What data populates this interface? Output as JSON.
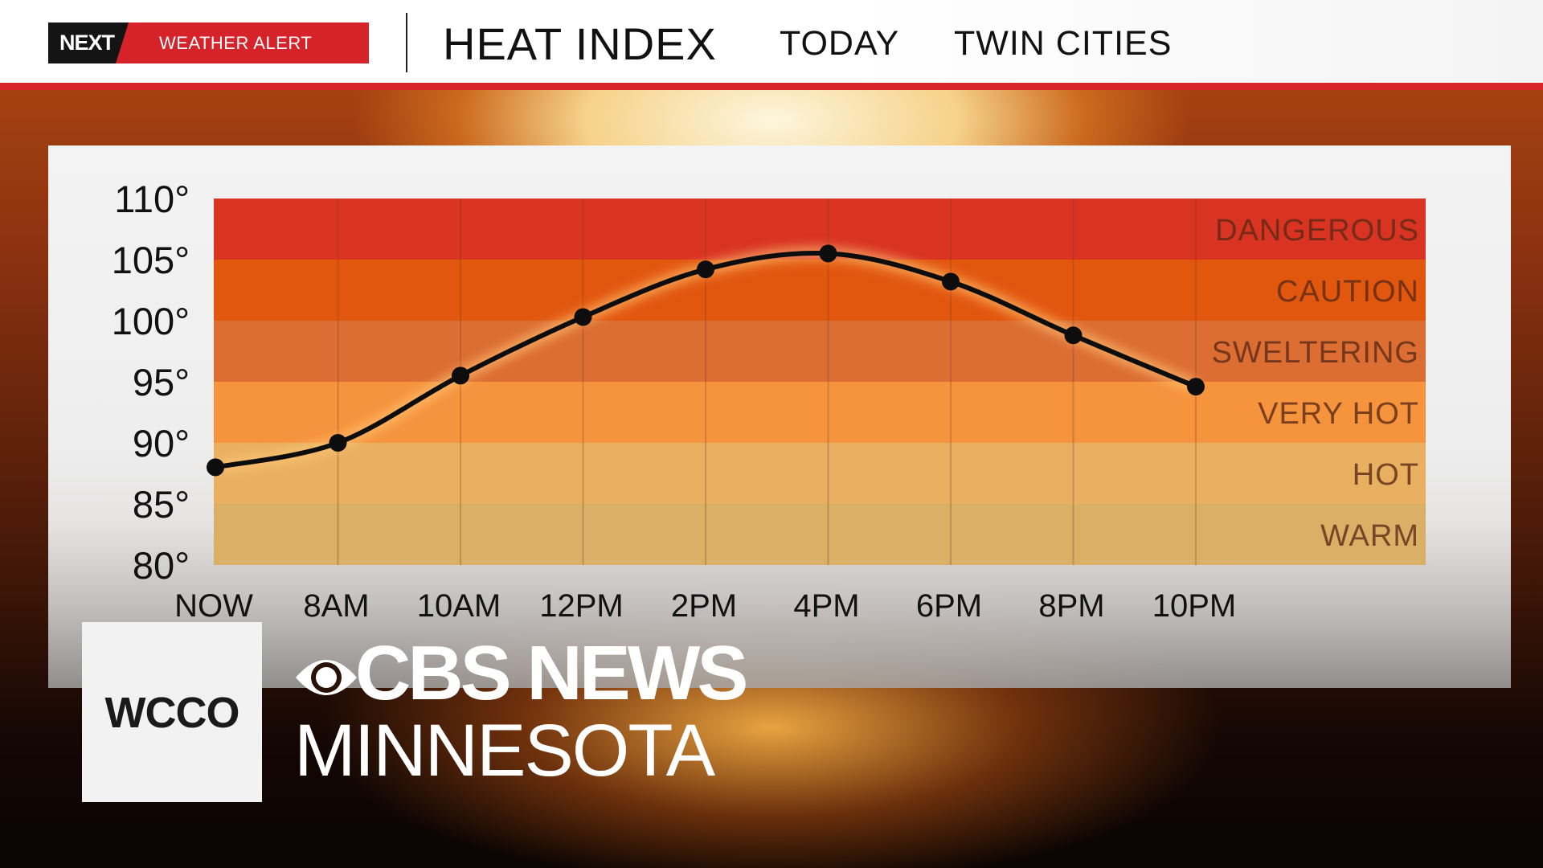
{
  "header": {
    "logo": "NEXT",
    "alert_label": "WEATHER ALERT",
    "title": "HEAT INDEX",
    "period": "TODAY",
    "location": "TWIN CITIES"
  },
  "chart_data": {
    "type": "line",
    "title": "HEAT INDEX",
    "x": [
      "NOW",
      "8AM",
      "10AM",
      "12PM",
      "2PM",
      "4PM",
      "6PM",
      "8PM",
      "10PM"
    ],
    "series": [
      {
        "values": [
          88,
          90,
          95.5,
          100.3,
          104.2,
          105.5,
          103.2,
          98.8,
          94.6
        ]
      }
    ],
    "ylim": [
      80,
      110
    ],
    "ytick_values": [
      80,
      85,
      90,
      95,
      100,
      105,
      110
    ],
    "ytick_labels": [
      "80°",
      "85°",
      "90°",
      "95°",
      "100°",
      "105°",
      "110°"
    ],
    "zones": [
      {
        "label": "WARM",
        "from": 80,
        "to": 85,
        "color": "#d9b066"
      },
      {
        "label": "HOT",
        "from": 85,
        "to": 90,
        "color": "#e8b060"
      },
      {
        "label": "VERY HOT",
        "from": 90,
        "to": 95,
        "color": "#f6933d"
      },
      {
        "label": "SWELTERING",
        "from": 95,
        "to": 100,
        "color": "#dc6d33"
      },
      {
        "label": "CAUTION",
        "from": 100,
        "to": 105,
        "color": "#e2570e"
      },
      {
        "label": "DANGEROUS",
        "from": 105,
        "to": 110,
        "color": "#d93322"
      }
    ],
    "line_color": "#0d0d0d",
    "grid": true
  },
  "branding": {
    "station": "WCCO",
    "network": "CBS NEWS",
    "region": "MINNESOTA"
  }
}
